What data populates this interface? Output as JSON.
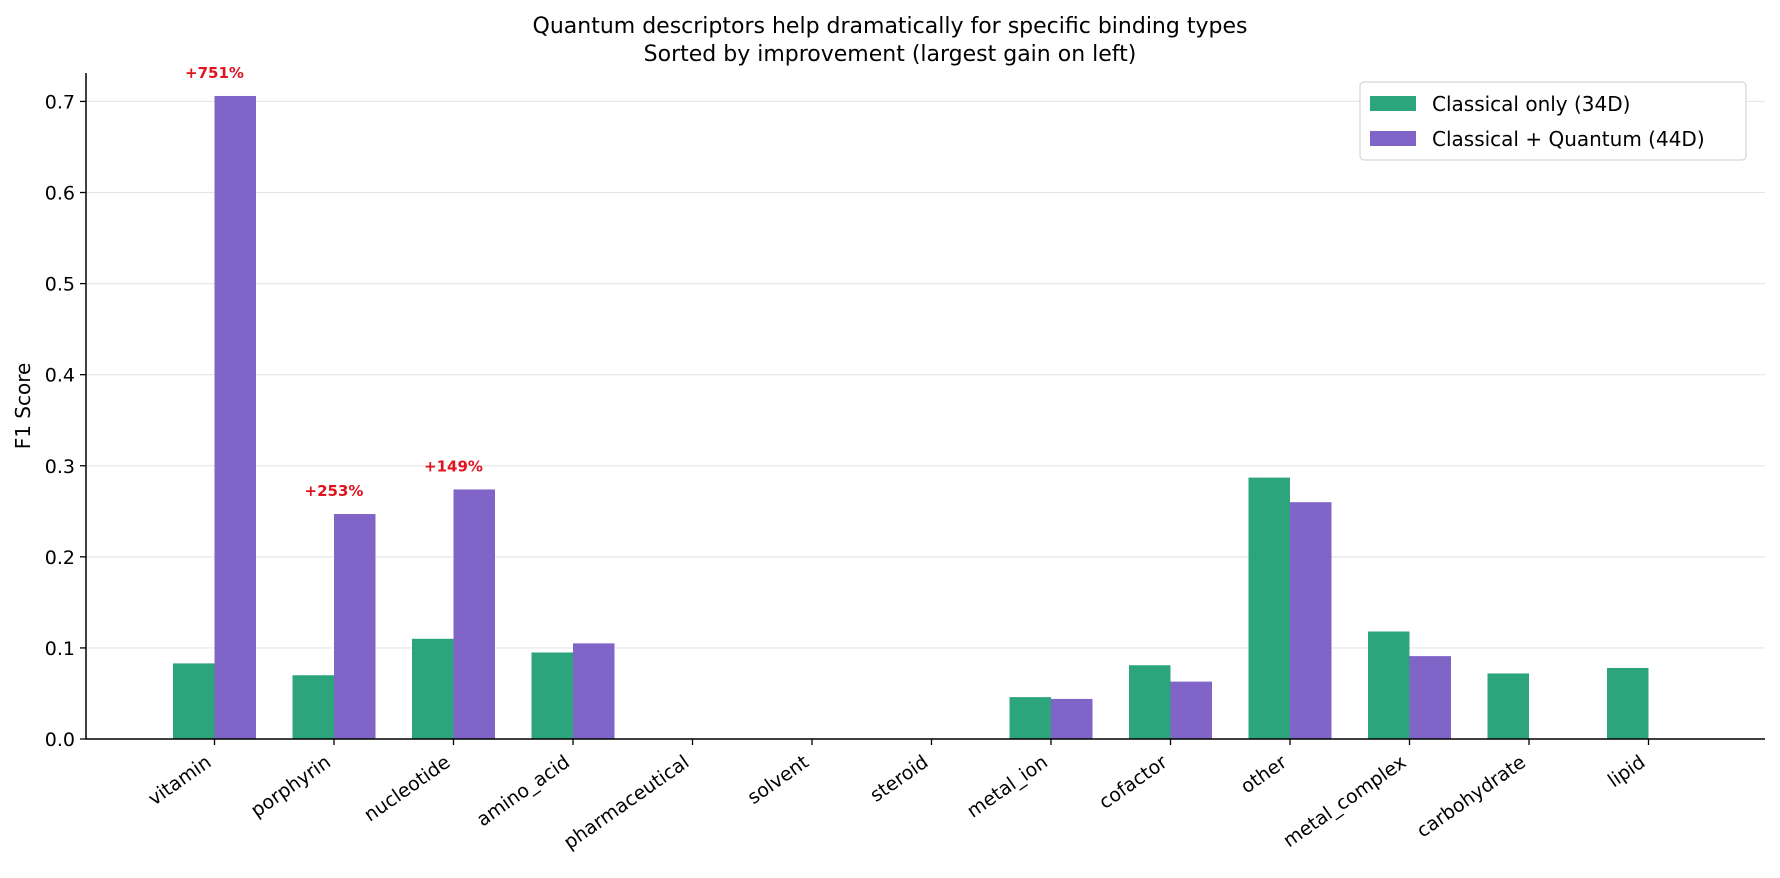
{
  "chart_data": {
    "type": "bar",
    "title": "Quantum descriptors help dramatically for specific binding types",
    "subtitle": "Sorted by improvement (largest gain on left)",
    "xlabel": "",
    "ylabel": "F1 Score",
    "ylim": [
      0,
      0.74
    ],
    "yticks": [
      "0.0",
      "0.1",
      "0.2",
      "0.3",
      "0.4",
      "0.5",
      "0.6",
      "0.7"
    ],
    "grid": "horizontal",
    "legend_position": "top-right",
    "categories": [
      "vitamin",
      "porphyrin",
      "nucleotide",
      "amino_acid",
      "pharmaceutical",
      "solvent",
      "steroid",
      "metal_ion",
      "cofactor",
      "other",
      "metal_complex",
      "carbohydrate",
      "lipid"
    ],
    "series": [
      {
        "name": "Classical only (34D)",
        "color": "#2ca47c",
        "values": [
          0.083,
          0.07,
          0.11,
          0.095,
          0.0,
          0.0,
          0.0,
          0.046,
          0.081,
          0.287,
          0.118,
          0.072,
          0.078
        ]
      },
      {
        "name": "Classical + Quantum (44D)",
        "color": "#8064c8",
        "values": [
          0.706,
          0.247,
          0.274,
          0.105,
          0.0,
          0.0,
          0.0,
          0.044,
          0.063,
          0.26,
          0.091,
          0.0,
          0.0
        ]
      }
    ],
    "annotations": [
      {
        "category": "vitamin",
        "text": "+751%"
      },
      {
        "category": "porphyrin",
        "text": "+253%"
      },
      {
        "category": "nucleotide",
        "text": "+149%"
      }
    ],
    "annotation_color": "#e0141e"
  }
}
